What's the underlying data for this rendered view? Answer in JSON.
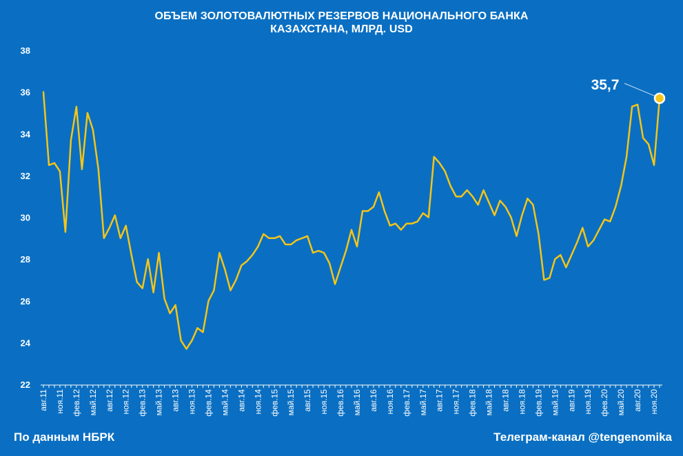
{
  "title_lines": [
    "ОБЪЕМ ЗОЛОТОВАЛЮТНЫХ РЕЗЕРВОВ НАЦИОНАЛЬНОГО БАНКА",
    "КАЗАХСТАНА, МЛРД. USD"
  ],
  "footer": {
    "source": "По данным НБРК",
    "channel": "Телеграм-канал @tengenomika"
  },
  "colors": {
    "background": "#0a6fc2",
    "line": "#f5c518",
    "text": "#ffffff"
  },
  "chart_data": {
    "type": "line",
    "title": "ОБЪЕМ ЗОЛОТОВАЛЮТНЫХ РЕЗЕРВОВ НАЦИОНАЛЬНОГО БАНКА КАЗАХСТАНА, МЛРД. USD",
    "xlabel": "",
    "ylabel": "",
    "ylim": [
      22,
      38
    ],
    "yticks": [
      "22",
      "24",
      "26",
      "28",
      "30",
      "32",
      "34",
      "36",
      "38"
    ],
    "grid": false,
    "legend": "none",
    "x_tick_labels": [
      "авг.11",
      "ноя.11",
      "фев.12",
      "май.12",
      "авг.12",
      "ноя.12",
      "фев.13",
      "май.13",
      "авг.13",
      "ноя.13",
      "фев.14",
      "май.14",
      "авг.14",
      "ноя.14",
      "фев.15",
      "май.15",
      "авг.15",
      "ноя.15",
      "фев.16",
      "май.16",
      "авг.16",
      "ноя.16",
      "фев.17",
      "май.17",
      "авг.17",
      "ноя.17",
      "фев.18",
      "май.18",
      "авг.18",
      "ноя.18",
      "фев.19",
      "май.19",
      "авг.19",
      "ноя.19",
      "фев.20",
      "май.20",
      "авг.20",
      "ноя.20"
    ],
    "series": [
      {
        "values": [
          36.0,
          32.5,
          32.6,
          32.2,
          29.3,
          33.7,
          35.3,
          32.3,
          35.0,
          34.2,
          32.3,
          29.0,
          29.5,
          30.1,
          29.0,
          29.6,
          28.2,
          26.9,
          26.6,
          28.0,
          26.4,
          28.3,
          26.1,
          25.4,
          25.8,
          24.1,
          23.7,
          24.1,
          24.7,
          24.5,
          26.0,
          26.5,
          28.3,
          27.5,
          26.5,
          27.0,
          27.7,
          27.9,
          28.2,
          28.6,
          29.2,
          29.0,
          29.0,
          29.1,
          28.7,
          28.7,
          28.9,
          29.0,
          29.1,
          28.3,
          28.4,
          28.3,
          27.8,
          26.8,
          27.6,
          28.4,
          29.4,
          28.6,
          30.3,
          30.3,
          30.5,
          31.2,
          30.3,
          29.6,
          29.7,
          29.4,
          29.7,
          29.7,
          29.8,
          30.2,
          30.0,
          32.9,
          32.6,
          32.2,
          31.5,
          31.0,
          31.0,
          31.3,
          31.0,
          30.6,
          31.3,
          30.7,
          30.1,
          30.8,
          30.5,
          30.0,
          29.1,
          30.1,
          30.9,
          30.6,
          29.2,
          27.0,
          27.1,
          28.0,
          28.2,
          27.6,
          28.2,
          28.8,
          29.5,
          28.6,
          28.9,
          29.4,
          29.9,
          29.8,
          30.5,
          31.5,
          32.9,
          35.3,
          35.4,
          33.8,
          33.5,
          32.5,
          35.7
        ]
      }
    ],
    "annotations": [
      {
        "text": "35,7",
        "target": "last_point"
      }
    ]
  }
}
